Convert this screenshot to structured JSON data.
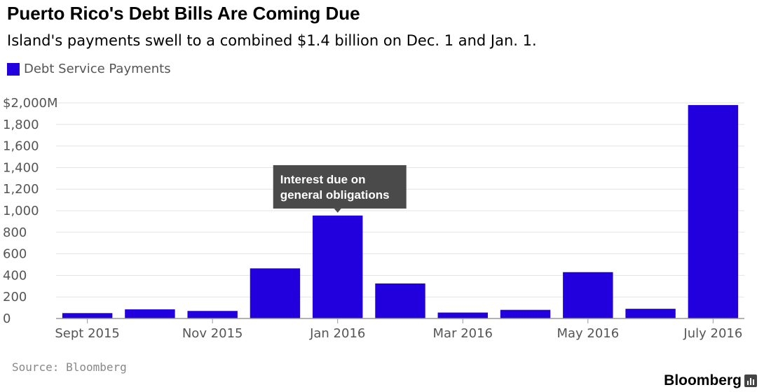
{
  "header": {
    "title": "Puerto Rico's Debt Bills Are Coming Due",
    "subtitle": "Island's payments swell to a combined $1.4 billion on Dec. 1 and Jan. 1."
  },
  "legend": {
    "label": "Debt Service Payments",
    "color": "#2200dd"
  },
  "annotation": {
    "lines": [
      "Interest due on",
      "general obligations"
    ],
    "category_index": 4,
    "background": "#4a4a4a"
  },
  "footer": {
    "source": "Source: Bloomberg",
    "brand": "Bloomberg"
  },
  "chart_data": {
    "type": "bar",
    "title": "Puerto Rico's Debt Bills Are Coming Due",
    "categories": [
      "Sept 2015",
      "Oct 2015",
      "Nov 2015",
      "Dec 2015",
      "Jan 2016",
      "Feb 2016",
      "Mar 2016",
      "Apr 2016",
      "May 2016",
      "Jun 2016",
      "July 2016"
    ],
    "x_tick_labels": [
      "Sept 2015",
      "",
      "Nov 2015",
      "",
      "Jan 2016",
      "",
      "Mar 2016",
      "",
      "May 2016",
      "",
      "July 2016"
    ],
    "series": [
      {
        "name": "Debt Service Payments",
        "values": [
          50,
          85,
          70,
          465,
          955,
          325,
          55,
          80,
          430,
          90,
          1980
        ]
      }
    ],
    "ylim": [
      0,
      2000
    ],
    "y_ticks": [
      0,
      200,
      400,
      600,
      800,
      1000,
      1200,
      1400,
      1600,
      1800,
      2000
    ],
    "y_tick_labels": [
      "0",
      "200",
      "400",
      "600",
      "800",
      "1,000",
      "1,200",
      "1,400",
      "1,600",
      "1,800",
      "$2,000M"
    ],
    "xlabel": "",
    "ylabel": "",
    "grid": true,
    "bar_color": "#2200dd"
  }
}
